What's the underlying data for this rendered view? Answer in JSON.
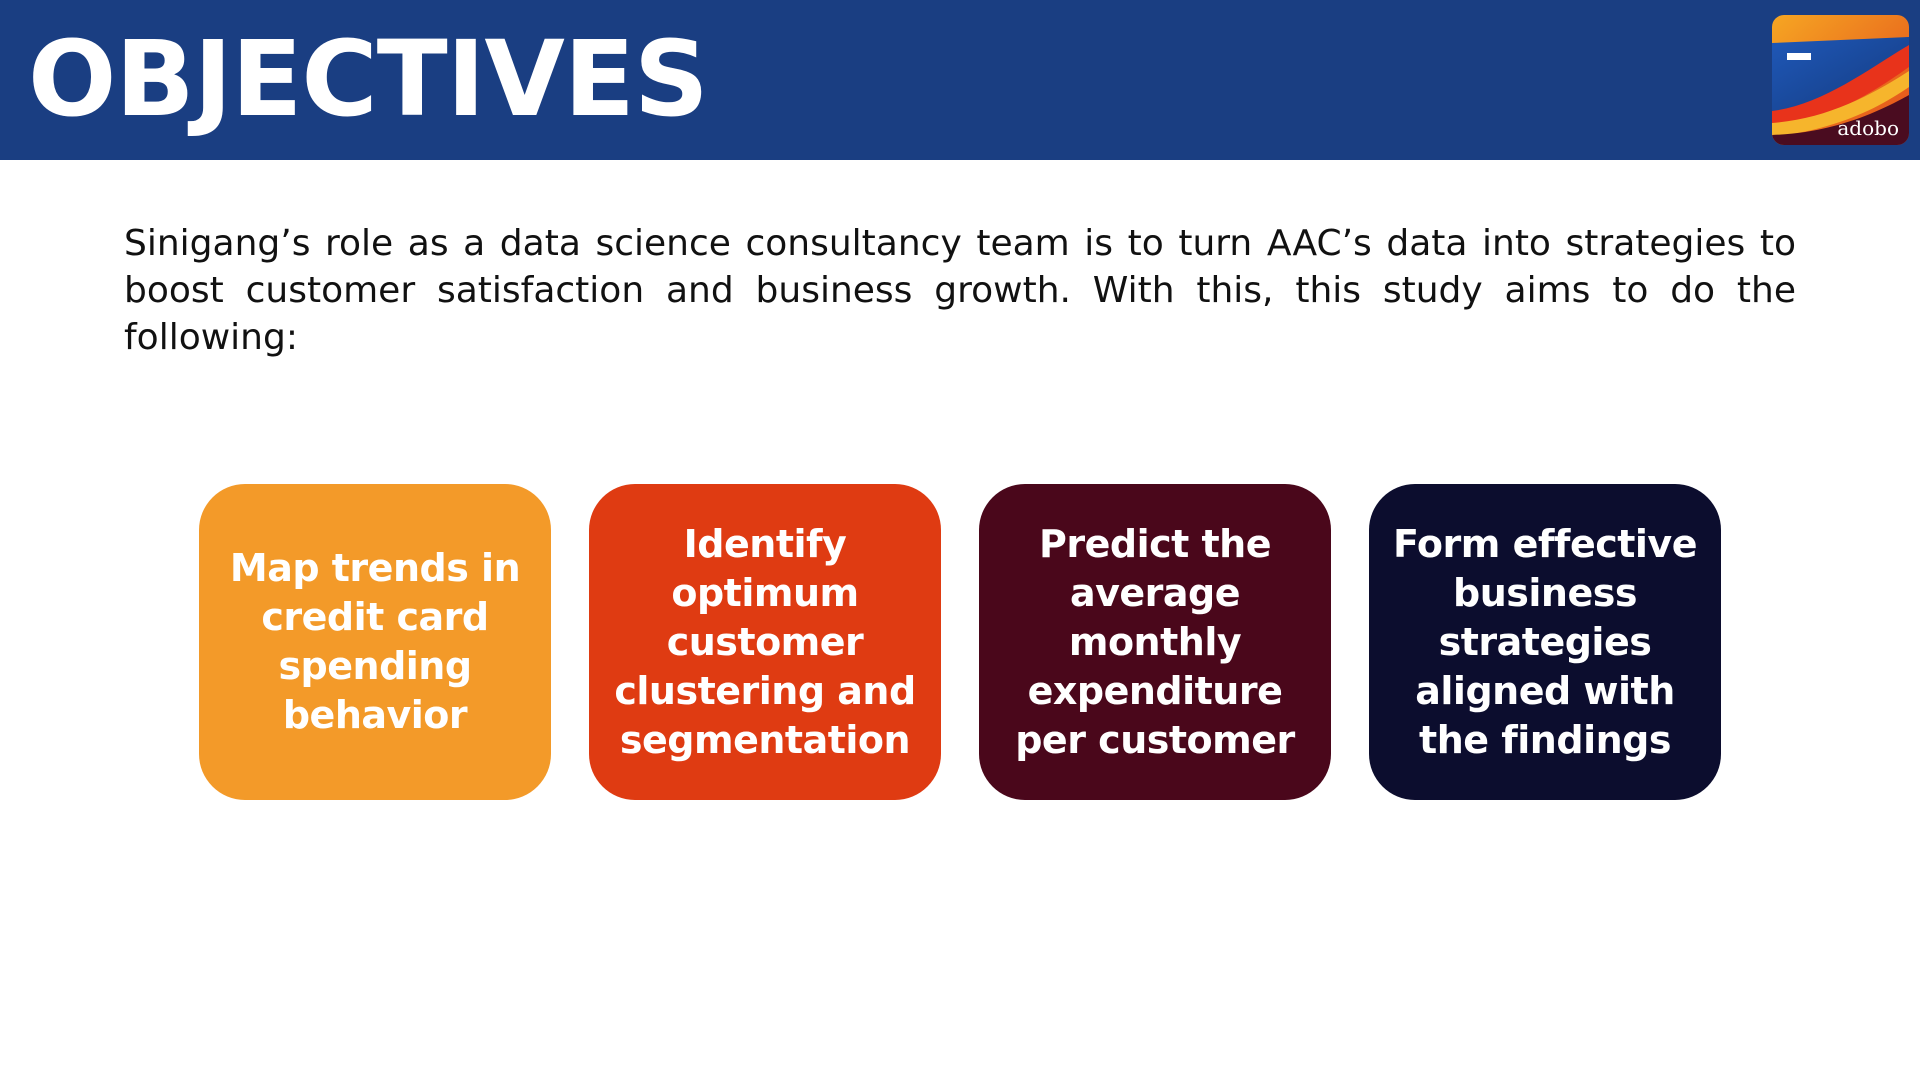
{
  "header": {
    "title": "OBJECTIVES",
    "background_color": "#1a3e82",
    "logo": {
      "icon": "adobo-logo-icon",
      "text": "adobo"
    }
  },
  "intro": {
    "text": "Sinigang’s role as a data science consultancy team is to turn AAC’s data into strategies to boost customer satisfaction and business growth. With this, this study aims to do the following:"
  },
  "objectives": [
    {
      "text": "Map trends in credit card spending behavior",
      "color": "#f39a29"
    },
    {
      "text": "Identify optimum customer clustering and segmentation",
      "color": "#df3b12"
    },
    {
      "text": "Predict the average monthly expenditure per customer",
      "color": "#4a071b"
    },
    {
      "text": "Form effective business strategies aligned with the findings",
      "color": "#0c0d2e"
    }
  ]
}
